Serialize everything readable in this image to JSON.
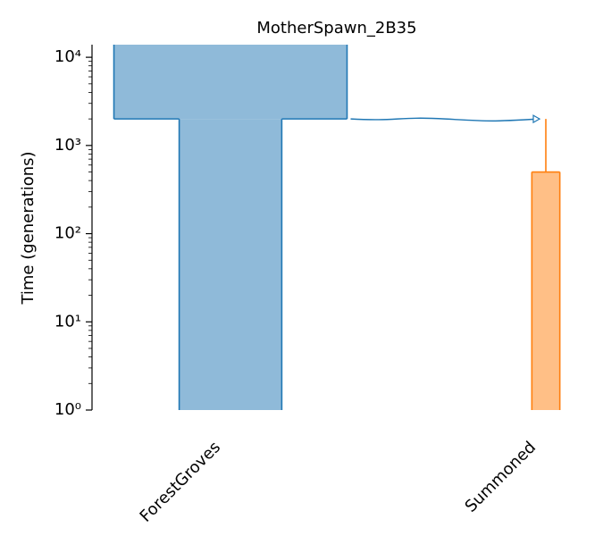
{
  "chart_data": {
    "type": "demes",
    "title": "MotherSpawn_2B35",
    "y_label": "Time (generations)",
    "log_y": true,
    "ylim": [
      1,
      13900
    ],
    "yticks": [
      {
        "value": 1,
        "label": "10⁰"
      },
      {
        "value": 10,
        "label": "10¹"
      },
      {
        "value": 100,
        "label": "10²"
      },
      {
        "value": 1000,
        "label": "10³"
      },
      {
        "value": 10000,
        "label": "10⁴"
      }
    ],
    "demes": [
      {
        "name": "ForestGroves",
        "color": "#1f77b4",
        "fill": "#8fbad9",
        "epochs": [
          {
            "start_time": null,
            "end_time": 2000,
            "size": 10000
          },
          {
            "start_time": 2000,
            "end_time": 0,
            "size": 4400
          }
        ]
      },
      {
        "name": "Summoned",
        "color": "#ff7f0e",
        "fill": "#ffbf86",
        "epochs": [
          {
            "start_time": 2000,
            "end_time": 500,
            "size": 0
          },
          {
            "start_time": 500,
            "end_time": 0,
            "size": 1200
          }
        ]
      }
    ],
    "pulses": [
      {
        "source": 0,
        "dest": 1,
        "time": 2000
      }
    ]
  }
}
